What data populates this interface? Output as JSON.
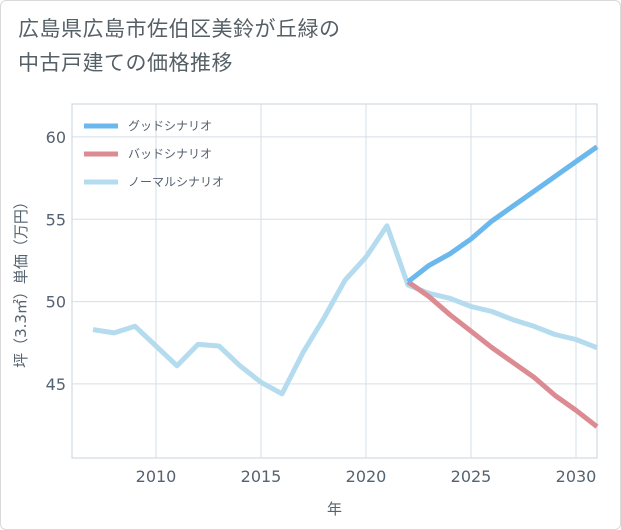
{
  "title_lines": [
    "広島県広島市佐伯区美鈴が丘緑の",
    "中古戸建ての価格推移"
  ],
  "chart_data": {
    "type": "line",
    "xlabel": "年",
    "ylabel": "坪（3.3㎡）単価（万円）",
    "xlim": [
      2006,
      2031
    ],
    "ylim": [
      40.5,
      62
    ],
    "xticks": [
      2010,
      2015,
      2020,
      2025,
      2030
    ],
    "yticks": [
      45,
      50,
      55,
      60
    ],
    "grid": true,
    "legend_position": "top-left",
    "series": [
      {
        "name": "グッドシナリオ",
        "color": "#6bb8ec",
        "x": [
          2022,
          2023,
          2024,
          2025,
          2026,
          2027,
          2028,
          2029,
          2030,
          2031
        ],
        "y": [
          51.2,
          52.2,
          52.9,
          53.8,
          54.9,
          55.8,
          56.7,
          57.6,
          58.5,
          59.4
        ]
      },
      {
        "name": "バッドシナリオ",
        "color": "#dc8b92",
        "x": [
          2022,
          2023,
          2024,
          2025,
          2026,
          2027,
          2028,
          2029,
          2030,
          2031
        ],
        "y": [
          51.2,
          50.3,
          49.2,
          48.2,
          47.2,
          46.3,
          45.4,
          44.3,
          43.4,
          42.4
        ]
      },
      {
        "name": "ノーマルシナリオ",
        "color": "#b4dcee",
        "x": [
          2007,
          2008,
          2009,
          2010,
          2011,
          2012,
          2013,
          2014,
          2015,
          2016,
          2017,
          2018,
          2019,
          2020,
          2021,
          2022,
          2023,
          2024,
          2025,
          2026,
          2027,
          2028,
          2029,
          2030,
          2031
        ],
        "y": [
          48.3,
          48.1,
          48.5,
          47.3,
          46.1,
          47.4,
          47.3,
          46.1,
          45.1,
          44.4,
          46.9,
          49.0,
          51.3,
          52.7,
          54.6,
          51.0,
          50.5,
          50.2,
          49.7,
          49.4,
          48.9,
          48.5,
          48.0,
          47.7,
          47.2
        ]
      }
    ]
  }
}
